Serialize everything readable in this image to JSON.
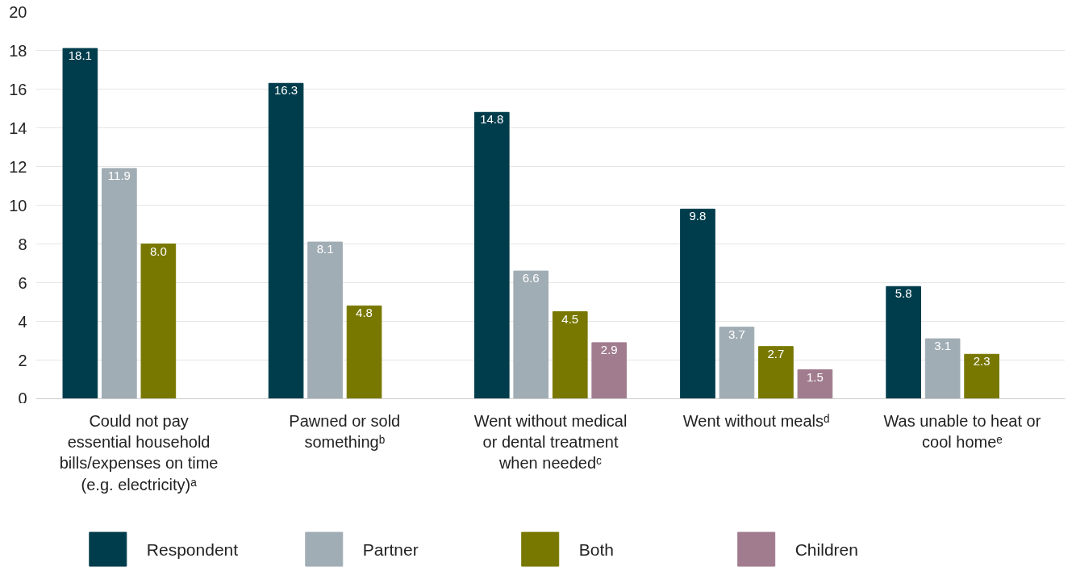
{
  "chart_data": {
    "type": "bar",
    "categories": [
      "Could not pay essential household bills/expenses on time (e.g. electricity)ᵃ",
      "Pawned or sold somethingᵇ",
      "Went without medical or dental treatment when neededᶜ",
      "Went without mealsᵈ",
      "Was unable to heat or cool homeᵉ"
    ],
    "series": [
      {
        "name": "Respondent",
        "color": "#003d4c",
        "values": [
          18.1,
          16.3,
          14.8,
          9.8,
          5.8
        ],
        "value_labels": [
          "18.1",
          "16.3",
          "14.8",
          "9.8",
          "5.8"
        ]
      },
      {
        "name": "Partner",
        "color": "#a1adb4",
        "values": [
          11.9,
          8.1,
          6.6,
          3.7,
          3.1
        ],
        "value_labels": [
          "11.9",
          "8.1",
          "6.6",
          "3.7",
          "3.1"
        ]
      },
      {
        "name": "Both",
        "color": "#787800",
        "values": [
          8.0,
          4.8,
          4.5,
          2.7,
          2.3
        ],
        "value_labels": [
          "8.0",
          "4.8",
          "4.5",
          "2.7",
          "2.3"
        ]
      },
      {
        "name": "Children",
        "color": "#a17c8e",
        "values": [
          null,
          null,
          2.9,
          1.5,
          null
        ],
        "value_labels": [
          null,
          null,
          "2.9",
          "1.5",
          null
        ]
      }
    ],
    "ylim": [
      0,
      20
    ],
    "yticks": [
      0,
      2,
      4,
      6,
      8,
      10,
      12,
      14,
      16,
      18,
      20
    ],
    "grid": "y",
    "legend": "bottom"
  }
}
